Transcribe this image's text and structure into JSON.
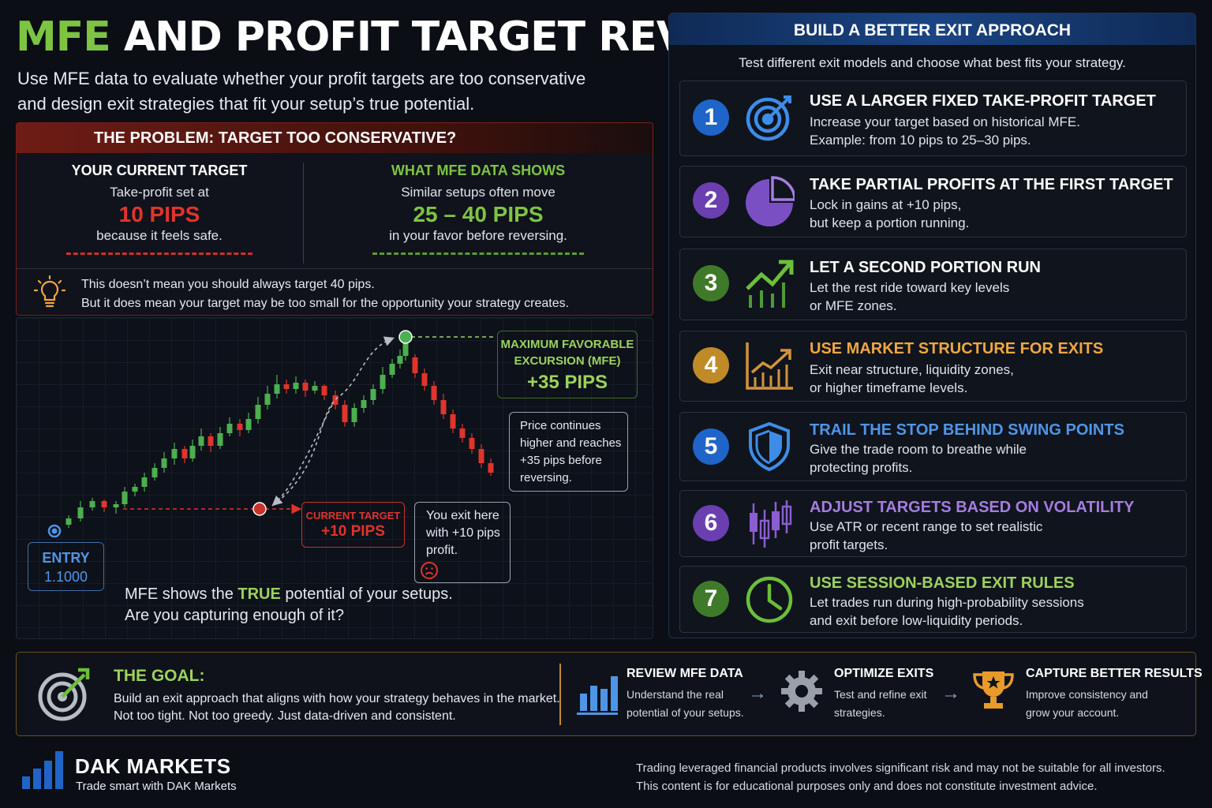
{
  "header": {
    "title_highlight": "MFE",
    "title_rest": " AND PROFIT TARGET REVIEW",
    "subtitle_line1": "Use MFE data to evaluate whether your profit targets are too conservative",
    "subtitle_line2": "and design exit strategies that fit your setup’s true potential."
  },
  "problem": {
    "heading": "THE PROBLEM: TARGET TOO CONSERVATIVE?",
    "left": {
      "title": "YOUR CURRENT TARGET",
      "line1": "Take-profit set at",
      "value": "10 PIPS",
      "line2": "because it feels safe."
    },
    "right": {
      "title": "WHAT MFE DATA SHOWS",
      "line1": "Similar setups often move",
      "value": "25 – 40 PIPS",
      "line2": "in your favor before reversing."
    },
    "note_line1": "This doesn’t mean you should always target 40 pips.",
    "note_line2": "But it does mean your target may be too small for the opportunity your strategy creates."
  },
  "chart": {
    "entry_label": "ENTRY",
    "entry_price": "1.1000",
    "current_target_label": "CURRENT TARGET",
    "current_target_value": "+10 PIPS",
    "exit_note": [
      "You exit here",
      "with +10 pips",
      "profit."
    ],
    "mfe_label_line1": "MAXIMUM FAVORABLE",
    "mfe_label_line2": "EXCURSION (MFE)",
    "mfe_value": "+35 PIPS",
    "continue_note": [
      "Price continues",
      "higher and reaches",
      "+35 pips before",
      "reversing."
    ],
    "caption_a": "MFE",
    "caption_b": " shows the ",
    "caption_c": "TRUE",
    "caption_d": " potential of your setups.",
    "caption_line2": "Are you capturing enough of it?",
    "colors": {
      "bull": "#4caf50",
      "bear": "#e0342c",
      "entry": "#4f95e6"
    }
  },
  "approach": {
    "heading": "BUILD A BETTER EXIT APPROACH",
    "subheading": "Test different exit models and choose what best fits your strategy.",
    "steps": [
      {
        "num": "1",
        "title": "USE A LARGER FIXED TAKE-PROFIT TARGET",
        "desc1": "Increase your target based on historical MFE.",
        "desc2": "Example: from 10 pips to 25–30 pips.",
        "color": "#1f64c8",
        "title_color": "#ffffff",
        "icon": "target-icon"
      },
      {
        "num": "2",
        "title": "TAKE PARTIAL PROFITS AT THE FIRST TARGET",
        "desc1": "Lock in gains at +10 pips,",
        "desc2": "but keep a portion running.",
        "color": "#6a3fb0",
        "title_color": "#ffffff",
        "icon": "pie-chart-icon"
      },
      {
        "num": "3",
        "title": "LET A SECOND PORTION RUN",
        "desc1": "Let the rest ride toward key levels",
        "desc2": "or MFE zones.",
        "color": "#3f7a2a",
        "title_color": "#ffffff",
        "icon": "trend-up-icon"
      },
      {
        "num": "4",
        "title": "USE MARKET STRUCTURE FOR EXITS",
        "desc1": "Exit near structure, liquidity zones,",
        "desc2": "or higher timeframe levels.",
        "color": "#c08a28",
        "title_color": "#f0a640",
        "icon": "bar-chart-icon"
      },
      {
        "num": "5",
        "title": "TRAIL THE STOP BEHIND SWING POINTS",
        "desc1": "Give the trade room to breathe while",
        "desc2": "protecting profits.",
        "color": "#1f64c8",
        "title_color": "#4f95e6",
        "icon": "shield-icon"
      },
      {
        "num": "6",
        "title": "ADJUST TARGETS BASED ON VOLATILITY",
        "desc1": "Use ATR or recent range to set realistic",
        "desc2": "profit targets.",
        "color": "#6a3fb0",
        "title_color": "#a57de0",
        "icon": "candles-icon"
      },
      {
        "num": "7",
        "title": "USE SESSION-BASED EXIT RULES",
        "desc1": "Let trades run during high-probability sessions",
        "desc2": "and exit before low-liquidity periods.",
        "color": "#3f7a2a",
        "title_color": "#9bd25d",
        "icon": "clock-icon"
      }
    ]
  },
  "goal": {
    "title": "THE GOAL:",
    "line1": "Build an exit approach that aligns with how your strategy behaves in the market.",
    "line2": "Not too tight. Not too greedy. Just data-driven and consistent.",
    "steps": [
      {
        "title": "REVIEW MFE DATA",
        "desc1": "Understand the real",
        "desc2": "potential of your setups.",
        "icon": "bar-chart-icon"
      },
      {
        "title": "OPTIMIZE EXITS",
        "desc1": "Test and refine exit",
        "desc2": "strategies.",
        "icon": "gear-icon"
      },
      {
        "title": "CAPTURE BETTER RESULTS",
        "desc1": "Improve consistency and",
        "desc2": "grow your account.",
        "icon": "trophy-icon"
      }
    ]
  },
  "footer": {
    "brand": "DAK MARKETS",
    "tagline": "Trade smart with DAK Markets",
    "disclaimer_line1": "Trading leveraged financial products involves significant risk and may not be suitable for all investors.",
    "disclaimer_line2": "This content is for educational purposes only and does not constitute investment advice."
  }
}
